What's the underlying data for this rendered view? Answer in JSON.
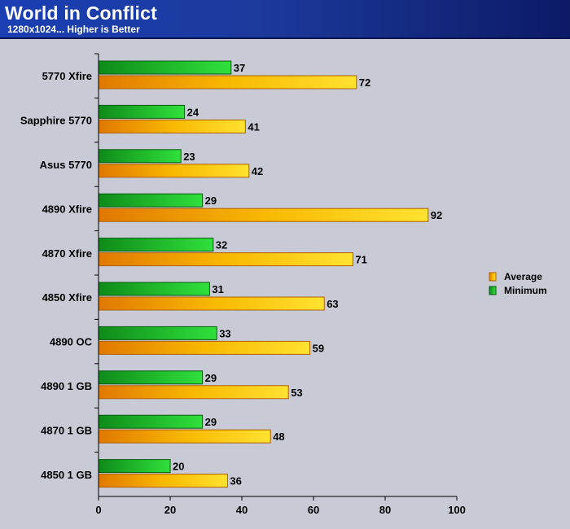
{
  "header": {
    "title": "World in Conflict",
    "subtitle": "1280x1024... Higher is Better"
  },
  "chart_data": {
    "type": "bar",
    "orientation": "horizontal",
    "categories": [
      "5770 Xfire",
      "Sapphire 5770",
      "Asus 5770",
      "4890 Xfire",
      "4870 Xfire",
      "4850 Xfire",
      "4890 OC",
      "4890 1 GB",
      "4870 1 GB",
      "4850 1 GB"
    ],
    "series": [
      {
        "name": "Minimum",
        "values": [
          37,
          24,
          23,
          29,
          32,
          31,
          33,
          29,
          29,
          20
        ],
        "color": "#22b822"
      },
      {
        "name": "Average",
        "values": [
          72,
          41,
          42,
          92,
          71,
          63,
          59,
          53,
          48,
          36
        ],
        "color": "#f5b400"
      }
    ],
    "xlim": [
      0,
      100
    ],
    "x_ticks": [
      0,
      20,
      40,
      60,
      80,
      100
    ],
    "grid": false,
    "legend_position": "right",
    "legend_order": [
      "Average",
      "Minimum"
    ]
  }
}
